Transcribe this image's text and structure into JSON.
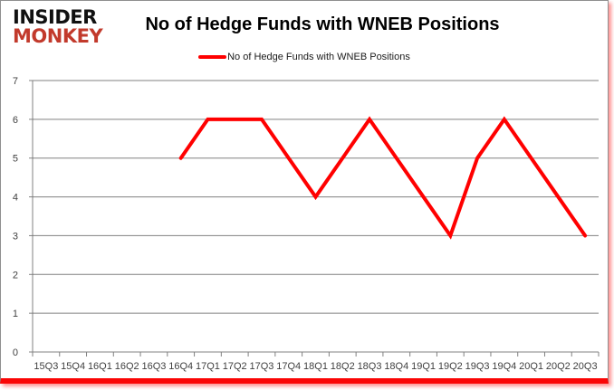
{
  "logo": {
    "line1": "INSIDER",
    "line2": "MONKEY"
  },
  "legend": {
    "label": "No of Hedge Funds with WNEB Positions"
  },
  "chart_data": {
    "type": "line",
    "title": "No of Hedge Funds with WNEB Positions",
    "categories": [
      "15Q3",
      "15Q4",
      "16Q1",
      "16Q2",
      "16Q3",
      "16Q4",
      "17Q1",
      "17Q2",
      "17Q3",
      "17Q4",
      "18Q1",
      "18Q2",
      "18Q3",
      "18Q4",
      "19Q1",
      "19Q2",
      "19Q3",
      "19Q4",
      "20Q1",
      "20Q2",
      "20Q3"
    ],
    "series": [
      {
        "name": "No of Hedge Funds with WNEB Positions",
        "values": [
          null,
          null,
          null,
          null,
          null,
          5,
          6,
          6,
          6,
          5,
          4,
          5,
          6,
          5,
          4,
          3,
          5,
          6,
          5,
          4,
          3
        ]
      }
    ],
    "xlabel": "",
    "ylabel": "",
    "ylim": [
      0,
      7
    ],
    "y_ticks": [
      0,
      1,
      2,
      3,
      4,
      5,
      6,
      7
    ],
    "grid": "horizontal",
    "legend_position": "top",
    "colors": {
      "line": "#ff0000",
      "grid": "#808080",
      "logo_red": "#c23a2c",
      "bottom_bar": "#fa0505",
      "title_text": "#000000"
    }
  }
}
